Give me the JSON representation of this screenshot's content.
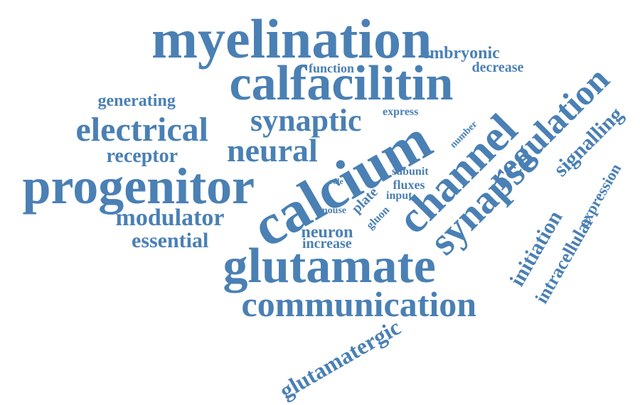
{
  "colors": {
    "word": "#4a80b4",
    "background": "#ffffff"
  },
  "words": [
    {
      "key": "myelination",
      "text": "myelination"
    },
    {
      "key": "calfacilitin",
      "text": "calfacilitin"
    },
    {
      "key": "embryonic",
      "text": "embryonic"
    },
    {
      "key": "function",
      "text": "function"
    },
    {
      "key": "decrease",
      "text": "decrease"
    },
    {
      "key": "generating",
      "text": "generating"
    },
    {
      "key": "express",
      "text": "express"
    },
    {
      "key": "electrical",
      "text": "electrical"
    },
    {
      "key": "synaptic",
      "text": "synaptic"
    },
    {
      "key": "neural",
      "text": "neural"
    },
    {
      "key": "receptor",
      "text": "receptor"
    },
    {
      "key": "progenitor",
      "text": "progenitor"
    },
    {
      "key": "calcium",
      "text": "calcium"
    },
    {
      "key": "channel",
      "text": "channel"
    },
    {
      "key": "regulation",
      "text": "regulation"
    },
    {
      "key": "signalling",
      "text": "signalling"
    },
    {
      "key": "number",
      "text": "number"
    },
    {
      "key": "subunit",
      "text": "subunit"
    },
    {
      "key": "fluxes",
      "text": "fluxes"
    },
    {
      "key": "input",
      "text": "input"
    },
    {
      "key": "role",
      "text": "role"
    },
    {
      "key": "plate",
      "text": "plate"
    },
    {
      "key": "mouse",
      "text": "mouse"
    },
    {
      "key": "gluon",
      "text": "gluon"
    },
    {
      "key": "modulator",
      "text": "modulator"
    },
    {
      "key": "neuron",
      "text": "neuron"
    },
    {
      "key": "increase",
      "text": "increase"
    },
    {
      "key": "essential",
      "text": "essential"
    },
    {
      "key": "synapse",
      "text": "synapse"
    },
    {
      "key": "expression",
      "text": "expression"
    },
    {
      "key": "initiation",
      "text": "initiation"
    },
    {
      "key": "intracellular",
      "text": "intracellular"
    },
    {
      "key": "glutamate",
      "text": "glutamate"
    },
    {
      "key": "communication",
      "text": "communication"
    },
    {
      "key": "glutamatergic",
      "text": "glutamatergic"
    }
  ]
}
